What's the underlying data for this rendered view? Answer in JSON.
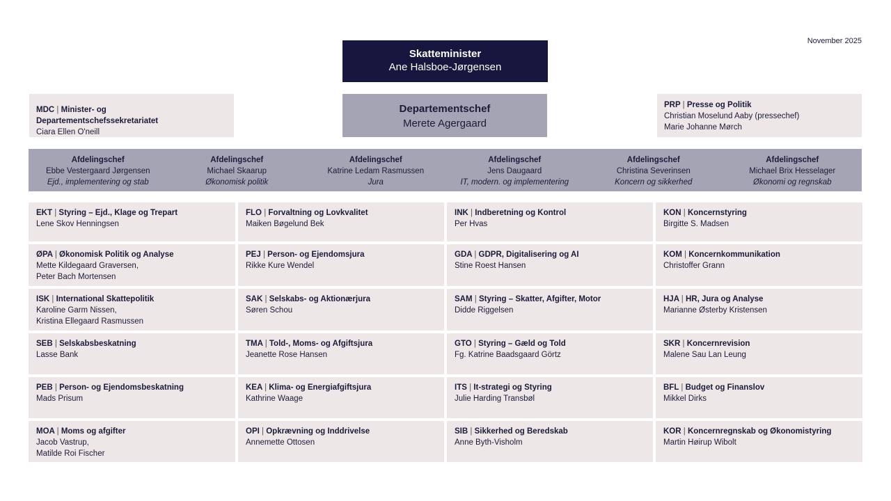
{
  "date": "November 2025",
  "minister": {
    "title": "Skatteminister",
    "name": "Ane Halsboe-Jørgensen"
  },
  "departementschef": {
    "title": "Departementschef",
    "name": "Merete Agergaard"
  },
  "left_box": {
    "code": "MDC",
    "unit": "Minister- og Departementschefssekretariatet",
    "people": [
      "Ciara Ellen O'neill"
    ]
  },
  "right_box": {
    "code": "PRP",
    "unit": "Presse og Politik",
    "people": [
      "Christian Moselund Aaby (pressechef)",
      "Marie Johanne Mørch"
    ]
  },
  "separator": "|",
  "afdelingschefer": [
    {
      "title": "Afdelingschef",
      "name": "Ebbe Vestergaard Jørgensen",
      "area": "Ejd., implementering og stab"
    },
    {
      "title": "Afdelingschef",
      "name": "Michael Skaarup",
      "area": "Økonomisk politik"
    },
    {
      "title": "Afdelingschef",
      "name": "Katrine Ledam Rasmussen",
      "area": "Jura"
    },
    {
      "title": "Afdelingschef",
      "name": "Jens Daugaard",
      "area": "IT, modern. og implementering"
    },
    {
      "title": "Afdelingschef",
      "name": "Christina Severinsen",
      "area": "Koncern og sikkerhed"
    },
    {
      "title": "Afdelingschef",
      "name": "Michael Brix Hesselager",
      "area": "Økonomi og regnskab"
    }
  ],
  "columns": [
    [
      {
        "code": "EKT",
        "unit": "Styring – Ejd., Klage og Trepart",
        "people": [
          "Lene Skov Henningsen"
        ]
      },
      {
        "code": "ØPA",
        "unit": "Økonomisk Politik og Analyse",
        "people": [
          "Mette Kildegaard Graversen,",
          "Peter Bach Mortensen"
        ]
      },
      {
        "code": "ISK",
        "unit": "International Skattepolitik",
        "people": [
          "Karoline Garm Nissen,",
          "Kristina Ellegaard Rasmussen"
        ]
      },
      {
        "code": "SEB",
        "unit": "Selskabsbeskatning",
        "people": [
          "Lasse Bank"
        ]
      },
      {
        "code": "PEB",
        "unit": "Person- og Ejendomsbeskatning",
        "people": [
          "Mads Prisum"
        ]
      },
      {
        "code": "MOA",
        "unit": "Moms og afgifter",
        "people": [
          "Jacob Vastrup,",
          "Matilde Roi Fischer"
        ]
      }
    ],
    [
      {
        "code": "FLO",
        "unit": "Forvaltning og Lovkvalitet",
        "people": [
          "Maiken Bøgelund Bek"
        ]
      },
      {
        "code": "PEJ",
        "unit": "Person- og Ejendomsjura",
        "people": [
          "Rikke Kure Wendel"
        ]
      },
      {
        "code": "SAK",
        "unit": "Selskabs- og Aktionærjura",
        "people": [
          "Søren Schou"
        ]
      },
      {
        "code": "TMA",
        "unit": "Told-, Moms- og Afgiftsjura",
        "people": [
          "Jeanette Rose Hansen"
        ]
      },
      {
        "code": "KEA",
        "unit": "Klima- og Energiafgiftsjura",
        "people": [
          "Kathrine Waage"
        ]
      },
      {
        "code": "OPI",
        "unit": "Opkrævning og Inddrivelse",
        "people": [
          "Annemette Ottosen"
        ]
      }
    ],
    [
      {
        "code": "INK",
        "unit": "Indberetning og Kontrol",
        "people": [
          "Per Hvas"
        ]
      },
      {
        "code": "GDA",
        "unit": "GDPR, Digitalisering og AI",
        "people": [
          "Stine Roest Hansen"
        ]
      },
      {
        "code": "SAM",
        "unit": "Styring – Skatter, Afgifter, Motor",
        "people": [
          "Didde Riggelsen"
        ]
      },
      {
        "code": "GTO",
        "unit": "Styring – Gæld og Told",
        "people": [
          "Fg. Katrine Baadsgaard Görtz"
        ]
      },
      {
        "code": "ITS",
        "unit": "It-strategi og Styring",
        "people": [
          "Julie Harding Transbøl"
        ]
      },
      {
        "code": "SIB",
        "unit": "Sikkerhed og Beredskab",
        "people": [
          "Anne Byth-Visholm"
        ]
      }
    ],
    [
      {
        "code": "KON",
        "unit": "Koncernstyring",
        "people": [
          "Birgitte S. Madsen"
        ]
      },
      {
        "code": "KOM",
        "unit": "Koncernkommunikation",
        "people": [
          "Christoffer Grann"
        ]
      },
      {
        "code": "HJA",
        "unit": "HR, Jura og Analyse",
        "people": [
          "Marianne Østerby Kristensen"
        ]
      },
      {
        "code": "SKR",
        "unit": "Koncernrevision",
        "people": [
          "Malene Sau Lan Leung"
        ]
      },
      {
        "code": "BFL",
        "unit": "Budget og Finanslov",
        "people": [
          "Mikkel Dirks"
        ]
      },
      {
        "code": "KOR",
        "unit": "Koncernregnskab og Økonomistyring",
        "people": [
          "Martin Høirup Wibolt"
        ]
      }
    ]
  ],
  "colors": {
    "minister_bg": "#16163f",
    "chef_bg": "#a4a4b4",
    "cell_bg": "#ede7e7",
    "text": "#1b1b3a"
  }
}
